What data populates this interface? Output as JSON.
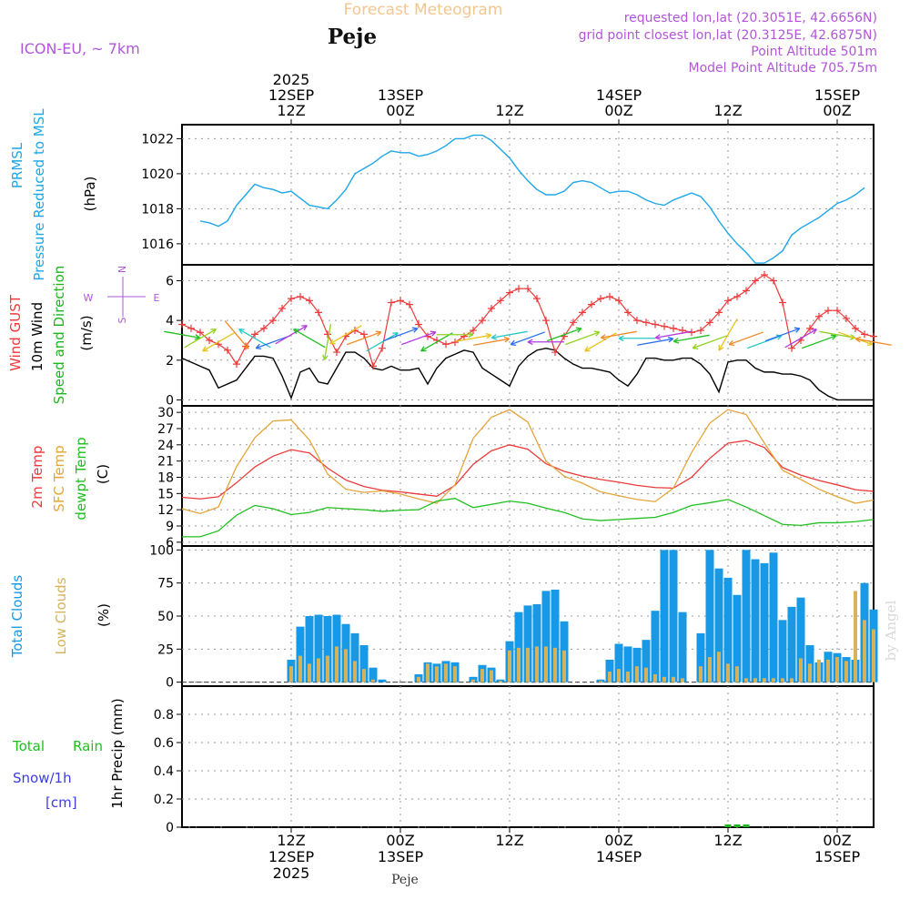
{
  "header": {
    "title": "Forecast Meteogram",
    "location": "Peje",
    "model": "ICON-EU, ~ 7km",
    "requested": "requested lon,lat (20.3051E, 42.6656N)",
    "gridpoint": "grid point closest lon,lat (20.3125E, 42.6875N)",
    "point_alt": "Point Altitude 501m",
    "model_alt": "Model Point Altitude 705.75m",
    "watermark": "by Angel",
    "footer": "Peje"
  },
  "time_axis": {
    "top": [
      {
        "t": 12,
        "l1": "2025",
        "l2": "12SEP",
        "l3": "12Z"
      },
      {
        "t": 24,
        "l1": "",
        "l2": "13SEP",
        "l3": "00Z"
      },
      {
        "t": 36,
        "l1": "",
        "l2": "",
        "l3": "12Z"
      },
      {
        "t": 48,
        "l1": "",
        "l2": "14SEP",
        "l3": "00Z"
      },
      {
        "t": 60,
        "l1": "",
        "l2": "",
        "l3": "12Z"
      },
      {
        "t": 72,
        "l1": "",
        "l2": "15SEP",
        "l3": "00Z"
      }
    ],
    "bottom": [
      {
        "t": 12,
        "l1": "12Z",
        "l2": "12SEP",
        "l3": "2025"
      },
      {
        "t": 24,
        "l1": "00Z",
        "l2": "13SEP",
        "l3": ""
      },
      {
        "t": 36,
        "l1": "12Z",
        "l2": "",
        "l3": ""
      },
      {
        "t": 48,
        "l1": "00Z",
        "l2": "14SEP",
        "l3": ""
      },
      {
        "t": 60,
        "l1": "12Z",
        "l2": "",
        "l3": ""
      },
      {
        "t": 72,
        "l1": "00Z",
        "l2": "15SEP",
        "l3": ""
      }
    ]
  },
  "chart_data": [
    {
      "type": "line",
      "panel": "pressure",
      "y_title": "PRMSL",
      "y_title2": "Pressure Reduced to MSL",
      "ylabel": "(hPa)",
      "ylim": [
        1014.8,
        1022.8
      ],
      "yticks": [
        1016,
        1018,
        1020,
        1022
      ],
      "x": [
        2,
        3,
        4,
        5,
        6,
        7,
        8,
        9,
        10,
        11,
        12,
        13,
        14,
        15,
        16,
        17,
        18,
        19,
        20,
        21,
        22,
        23,
        24,
        25,
        26,
        27,
        28,
        29,
        30,
        31,
        32,
        33,
        34,
        35,
        36,
        37,
        38,
        39,
        40,
        41,
        42,
        43,
        44,
        45,
        46,
        47,
        48,
        49,
        50,
        51,
        52,
        53,
        54,
        55,
        56,
        57,
        58,
        59,
        60,
        61,
        62,
        63,
        64,
        65,
        66,
        67,
        68,
        69,
        70,
        71,
        72,
        73,
        74,
        75
      ],
      "series": [
        {
          "values": [
            1017.3,
            1017.2,
            1017.0,
            1017.3,
            1018.2,
            1018.8,
            1019.4,
            1019.2,
            1019.1,
            1018.9,
            1019.0,
            1018.6,
            1018.2,
            1018.1,
            1018.0,
            1018.5,
            1019.1,
            1020.0,
            1020.3,
            1020.6,
            1021.0,
            1021.3,
            1021.2,
            1021.2,
            1021.0,
            1021.1,
            1021.3,
            1021.6,
            1022.0,
            1022.0,
            1022.2,
            1022.2,
            1021.9,
            1021.4,
            1020.9,
            1020.2,
            1019.6,
            1019.1,
            1018.8,
            1018.8,
            1019.0,
            1019.5,
            1019.6,
            1019.5,
            1019.2,
            1018.9,
            1019.0,
            1019.0,
            1018.8,
            1018.5,
            1018.3,
            1018.2,
            1018.5,
            1018.7,
            1018.9,
            1018.7,
            1018.1,
            1017.3,
            1016.6,
            1016.0,
            1015.5,
            1014.9,
            1014.9,
            1015.2,
            1015.6,
            1016.5,
            1016.9,
            1017.2,
            1017.5,
            1017.9,
            1018.3,
            1018.5,
            1018.8,
            1019.2
          ]
        }
      ]
    },
    {
      "type": "line",
      "panel": "wind",
      "y_title_gust": "Wind GUST",
      "y_title_wind": "10m Wind",
      "y_title_dir": "Speed and Direction",
      "ylabel": "(m/s)",
      "compass": [
        "N",
        "W",
        "E",
        "S"
      ],
      "ylim": [
        -0.3,
        6.8
      ],
      "yticks": [
        0,
        2,
        4,
        6
      ],
      "x": [
        0,
        1,
        2,
        3,
        4,
        5,
        6,
        7,
        8,
        9,
        10,
        11,
        12,
        13,
        14,
        15,
        16,
        17,
        18,
        19,
        20,
        21,
        22,
        23,
        24,
        25,
        26,
        27,
        28,
        29,
        30,
        31,
        32,
        33,
        34,
        35,
        36,
        37,
        38,
        39,
        40,
        41,
        42,
        43,
        44,
        45,
        46,
        47,
        48,
        49,
        50,
        51,
        52,
        53,
        54,
        55,
        56,
        57,
        58,
        59,
        60,
        61,
        62,
        63,
        64,
        65,
        66,
        67,
        68,
        69,
        70,
        71,
        72,
        73,
        74,
        75,
        76
      ],
      "series": [
        {
          "name": "Wind GUST",
          "values": [
            3.8,
            3.6,
            3.4,
            3.0,
            2.8,
            2.5,
            1.8,
            2.7,
            3.3,
            3.6,
            4.0,
            4.6,
            5.1,
            5.2,
            5.0,
            4.4,
            3.3,
            2.4,
            3.2,
            3.5,
            3.3,
            1.7,
            2.6,
            4.9,
            5.0,
            4.8,
            3.8,
            3.2,
            3.0,
            2.8,
            2.9,
            3.2,
            3.5,
            4.0,
            4.6,
            5.0,
            5.4,
            5.6,
            5.6,
            5.1,
            4.0,
            2.4,
            3.2,
            3.9,
            4.4,
            4.8,
            5.1,
            5.2,
            5.0,
            4.4,
            4.0,
            3.9,
            3.8,
            3.7,
            3.6,
            3.5,
            3.4,
            3.5,
            3.9,
            4.4,
            5.0,
            5.2,
            5.5,
            6.0,
            6.3,
            6.0,
            4.9,
            2.6,
            3.0,
            3.6,
            4.2,
            4.5,
            4.5,
            4.1,
            3.6,
            3.3,
            3.2
          ]
        },
        {
          "name": "10m Wind",
          "values": [
            2.1,
            1.9,
            1.7,
            1.5,
            0.6,
            0.8,
            1.0,
            1.6,
            2.2,
            2.2,
            2.1,
            1.2,
            0.1,
            1.4,
            1.6,
            0.9,
            0.8,
            1.6,
            2.4,
            2.4,
            2.1,
            1.6,
            1.5,
            1.7,
            1.5,
            1.5,
            1.6,
            0.8,
            1.6,
            2.1,
            2.3,
            2.5,
            2.4,
            1.6,
            1.3,
            1.0,
            0.7,
            1.7,
            2.2,
            2.5,
            2.6,
            2.5,
            2.1,
            1.8,
            1.6,
            1.6,
            1.5,
            1.4,
            1.0,
            0.7,
            1.3,
            2.1,
            2.1,
            2.0,
            2.0,
            2.1,
            2.1,
            1.8,
            1.3,
            0.4,
            1.9,
            2.0,
            2.0,
            1.6,
            1.4,
            1.4,
            1.3,
            1.3,
            1.2,
            1.0,
            0.5,
            0.2,
            0.0,
            0.0,
            0.0,
            0.0,
            0.0
          ]
        }
      ],
      "arrows": {
        "x": [
          0,
          2,
          4,
          6,
          8,
          10,
          12,
          14,
          16,
          18,
          20,
          22,
          24,
          26,
          28,
          30,
          32,
          34,
          36,
          38,
          40,
          42,
          44,
          46,
          48,
          50,
          52,
          54,
          56,
          58,
          60,
          62,
          64,
          66,
          68,
          70,
          72,
          74,
          76
        ],
        "dir_deg": [
          100,
          60,
          240,
          140,
          300,
          250,
          60,
          300,
          190,
          240,
          70,
          60,
          70,
          70,
          240,
          90,
          80,
          80,
          260,
          250,
          270,
          70,
          70,
          240,
          260,
          270,
          80,
          260,
          260,
          250,
          210,
          250,
          70,
          70,
          60,
          70,
          100,
          110,
          280
        ]
      }
    },
    {
      "type": "line",
      "panel": "temperature",
      "y_title": "2m Temp",
      "y_title2": "SFC Temp",
      "y_title3": "dewpt Temp",
      "ylabel": "(C)",
      "ylim": [
        5.3,
        31.2
      ],
      "yticks": [
        6,
        9,
        12,
        15,
        18,
        21,
        24,
        27,
        30
      ],
      "x": [
        0,
        2,
        4,
        6,
        8,
        10,
        12,
        14,
        16,
        18,
        20,
        22,
        24,
        26,
        28,
        30,
        32,
        34,
        36,
        38,
        40,
        42,
        44,
        46,
        48,
        50,
        52,
        54,
        56,
        58,
        60,
        62,
        64,
        66,
        68,
        70,
        72,
        74,
        76
      ],
      "series": [
        {
          "name": "2m Temp",
          "values": [
            14.3,
            14.0,
            14.4,
            17.0,
            19.9,
            21.9,
            23.1,
            22.5,
            19.7,
            17.5,
            16.3,
            15.6,
            15.3,
            14.9,
            14.5,
            16.5,
            20.4,
            22.9,
            24.0,
            23.2,
            20.5,
            19.1,
            18.2,
            17.6,
            17.1,
            16.5,
            16.1,
            16.0,
            18.0,
            21.5,
            24.3,
            24.8,
            23.5,
            19.8,
            18.4,
            17.4,
            16.6,
            15.7,
            15.4
          ]
        },
        {
          "name": "SFC Temp",
          "values": [
            12.2,
            11.3,
            12.5,
            20.0,
            25.3,
            28.4,
            28.6,
            24.9,
            18.6,
            15.8,
            15.2,
            15.5,
            14.9,
            14.0,
            13.2,
            16.6,
            25.2,
            29.1,
            30.5,
            28.2,
            21.0,
            18.2,
            16.9,
            15.3,
            14.6,
            13.9,
            13.5,
            16.0,
            22.6,
            28.0,
            30.5,
            29.6,
            24.3,
            19.3,
            17.6,
            15.8,
            14.4,
            13.2,
            13.8
          ]
        },
        {
          "name": "dewpt Temp",
          "values": [
            7.0,
            7.0,
            8.1,
            11.0,
            12.8,
            12.2,
            11.1,
            11.5,
            12.4,
            12.2,
            12.0,
            11.7,
            11.9,
            12.0,
            13.6,
            14.1,
            12.4,
            13.0,
            13.6,
            13.2,
            12.3,
            11.5,
            10.3,
            10.0,
            10.2,
            10.4,
            10.6,
            11.5,
            12.8,
            13.3,
            13.9,
            12.5,
            10.9,
            9.3,
            9.1,
            9.6,
            9.6,
            9.8,
            10.2
          ]
        }
      ]
    },
    {
      "type": "bar",
      "panel": "clouds",
      "y_title": "Total Clouds",
      "y_title2": "Low Clouds",
      "ylabel": "(%)",
      "ylim": [
        -3,
        103
      ],
      "yticks": [
        0,
        25,
        50,
        75,
        100
      ],
      "x": [
        12,
        13,
        14,
        15,
        16,
        17,
        18,
        19,
        20,
        21,
        22,
        23,
        24,
        25,
        26,
        27,
        28,
        29,
        30,
        31,
        32,
        33,
        34,
        35,
        36,
        37,
        38,
        39,
        40,
        41,
        42,
        43,
        44,
        45,
        46,
        47,
        48,
        49,
        50,
        51,
        52,
        53,
        54,
        55,
        56,
        57,
        58,
        59,
        60,
        61,
        62,
        63,
        64,
        65,
        66,
        67,
        68,
        69,
        70,
        71,
        72,
        73,
        74,
        75,
        76
      ],
      "series": [
        {
          "name": "Total Clouds",
          "values": [
            17,
            42,
            50,
            51,
            50,
            51,
            44,
            37,
            28,
            11,
            2,
            0,
            0,
            0,
            6,
            15,
            14,
            16,
            15,
            0,
            4,
            13,
            11,
            2,
            31,
            53,
            58,
            59,
            69,
            70,
            46,
            0,
            0,
            0,
            2,
            17,
            29,
            27,
            26,
            32,
            54,
            100,
            100,
            53,
            0,
            37,
            100,
            86,
            79,
            66,
            100,
            93,
            90,
            98,
            47,
            57,
            64,
            28,
            15,
            23,
            22,
            19,
            17,
            75,
            55
          ]
        },
        {
          "name": "Low Clouds",
          "values": [
            12,
            20,
            14,
            18,
            20,
            27,
            25,
            16,
            10,
            2,
            0,
            0,
            0,
            0,
            4,
            14,
            12,
            14,
            12,
            0,
            2,
            10,
            9,
            1,
            24,
            26,
            26,
            27,
            27,
            26,
            24,
            0,
            0,
            0,
            1,
            8,
            10,
            8,
            12,
            11,
            6,
            4,
            4,
            3,
            0,
            12,
            19,
            23,
            14,
            12,
            3,
            3,
            3,
            3,
            3,
            3,
            18,
            14,
            17,
            17,
            19,
            16,
            69,
            47,
            40
          ]
        }
      ]
    },
    {
      "type": "bar",
      "panel": "precip",
      "y_title": "1hr Precip (mm)",
      "legend": [
        "Total",
        "Rain",
        "Snow/1h",
        "[cm]"
      ],
      "ylim": [
        0,
        1.0
      ],
      "yticks": [
        "0",
        "0.2",
        "0.4",
        "0.6",
        "0.8"
      ],
      "x": [
        60,
        61,
        62
      ],
      "series": [
        {
          "name": "Rain",
          "values": [
            0.02,
            0.01,
            0.015
          ]
        }
      ]
    }
  ],
  "colors": {
    "title": "#f2c78e",
    "meta": "#b256d8",
    "pressure": "#1da6e8",
    "gust": "#ec3a3a",
    "wind": "#000000",
    "dir": "#1fb51f",
    "t2m": "#ec3a3a",
    "tsfc": "#e5a43a",
    "dewpt": "#1fbf1f",
    "total_clouds": "#1799e6",
    "low_clouds": "#d6b35a",
    "snow": "#3c3ce0",
    "grid": "#9a9a9a"
  }
}
